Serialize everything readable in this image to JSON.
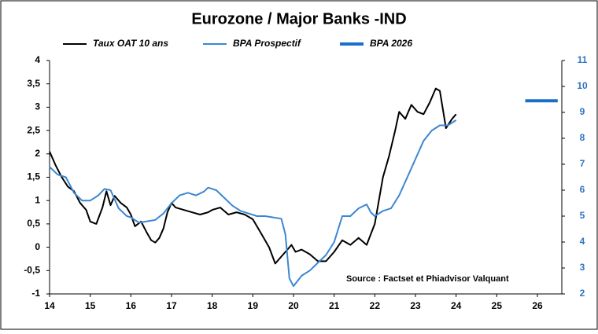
{
  "chart_data": {
    "type": "line",
    "title": "Eurozone / Major Banks -IND",
    "annotation": "Source : Factset et Phiadvisor Valquant",
    "xlim": [
      14,
      26.6
    ],
    "xticks": [
      14,
      15,
      16,
      17,
      18,
      19,
      20,
      21,
      22,
      23,
      24,
      25,
      26
    ],
    "ylim": [
      -1,
      4
    ],
    "yticks": [
      -1,
      {
        "value": -0.5,
        "label": "-0,5"
      },
      0,
      {
        "value": 0.5,
        "label": "0,5"
      },
      1,
      {
        "value": 1.5,
        "label": "1,5"
      },
      2,
      {
        "value": 2.5,
        "label": "2,5"
      },
      3,
      {
        "value": 3.5,
        "label": "3,5"
      },
      4
    ],
    "y2lim": [
      2,
      11
    ],
    "y2ticks": [
      2,
      3,
      4,
      5,
      6,
      7,
      8,
      9,
      10,
      11
    ],
    "grid": false,
    "series": [
      {
        "name": "Taux OAT 10 ans",
        "color": "#000000",
        "width": 2,
        "x": [
          14.0,
          14.15,
          14.3,
          14.45,
          14.6,
          14.75,
          14.9,
          15.0,
          15.15,
          15.3,
          15.4,
          15.5,
          15.6,
          15.75,
          15.9,
          16.0,
          16.1,
          16.25,
          16.4,
          16.5,
          16.6,
          16.7,
          16.8,
          16.9,
          17.0,
          17.1,
          17.3,
          17.5,
          17.7,
          17.9,
          18.0,
          18.2,
          18.4,
          18.6,
          18.8,
          19.0,
          19.2,
          19.4,
          19.55,
          19.7,
          19.85,
          19.95,
          20.05,
          20.2,
          20.4,
          20.6,
          20.8,
          21.0,
          21.2,
          21.4,
          21.6,
          21.8,
          22.0,
          22.2,
          22.35,
          22.5,
          22.6,
          22.75,
          22.9,
          23.05,
          23.2,
          23.35,
          23.5,
          23.6,
          23.75,
          23.9,
          24.0
        ],
        "values": [
          2.05,
          1.75,
          1.5,
          1.3,
          1.2,
          0.95,
          0.8,
          0.55,
          0.5,
          0.85,
          1.2,
          0.9,
          1.1,
          0.95,
          0.85,
          0.7,
          0.45,
          0.55,
          0.3,
          0.15,
          0.1,
          0.2,
          0.4,
          0.75,
          0.95,
          0.85,
          0.8,
          0.75,
          0.7,
          0.75,
          0.8,
          0.85,
          0.7,
          0.75,
          0.7,
          0.6,
          0.3,
          0.0,
          -0.35,
          -0.2,
          -0.05,
          0.05,
          -0.1,
          -0.05,
          -0.15,
          -0.3,
          -0.3,
          -0.1,
          0.15,
          0.05,
          0.2,
          0.05,
          0.5,
          1.5,
          1.95,
          2.5,
          2.9,
          2.75,
          3.05,
          2.9,
          2.85,
          3.1,
          3.4,
          3.35,
          2.55,
          2.75,
          2.85
        ]
      },
      {
        "name": "BPA Prospectif",
        "color": "#3b87d1",
        "width": 2,
        "axis": "y2",
        "x": [
          14.0,
          14.2,
          14.4,
          14.6,
          14.8,
          15.0,
          15.2,
          15.35,
          15.5,
          15.7,
          15.9,
          16.0,
          16.2,
          16.4,
          16.6,
          16.8,
          17.0,
          17.2,
          17.4,
          17.6,
          17.8,
          17.9,
          18.1,
          18.3,
          18.5,
          18.7,
          18.9,
          19.1,
          19.3,
          19.5,
          19.7,
          19.8,
          19.9,
          20.0,
          20.2,
          20.4,
          20.6,
          20.8,
          21.0,
          21.2,
          21.4,
          21.6,
          21.8,
          21.9,
          22.0,
          22.2,
          22.4,
          22.6,
          22.8,
          23.0,
          23.2,
          23.4,
          23.6,
          23.8,
          24.0
        ],
        "values": [
          6.9,
          6.6,
          6.5,
          5.9,
          5.6,
          5.6,
          5.8,
          6.05,
          6.0,
          5.3,
          5.0,
          4.95,
          4.75,
          4.8,
          4.85,
          5.1,
          5.5,
          5.8,
          5.9,
          5.8,
          5.95,
          6.1,
          6.0,
          5.7,
          5.4,
          5.2,
          5.1,
          5.0,
          5.0,
          4.95,
          4.9,
          4.3,
          2.6,
          2.3,
          2.7,
          2.9,
          3.2,
          3.5,
          4.0,
          5.0,
          5.0,
          5.3,
          5.45,
          5.15,
          5.0,
          5.2,
          5.3,
          5.8,
          6.5,
          7.2,
          7.9,
          8.3,
          8.5,
          8.5,
          8.7
        ]
      },
      {
        "name": "BPA 2026",
        "color": "#1a6fc9",
        "width": 4,
        "axis": "y2",
        "x": [
          25.7,
          26.5
        ],
        "values": [
          9.45,
          9.45
        ]
      }
    ]
  }
}
